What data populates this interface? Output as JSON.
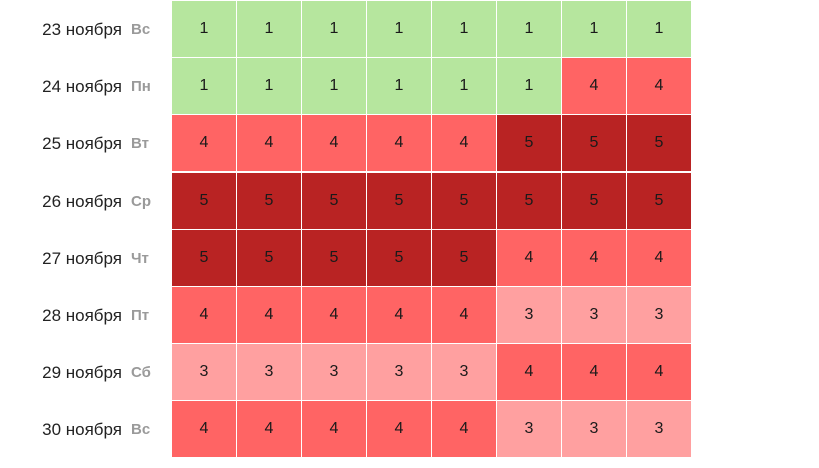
{
  "level_colors": {
    "1": "#b6e69e",
    "3": "#ffa0a0",
    "4": "#ff6464",
    "5": "#b92323"
  },
  "rows": [
    {
      "date": "23 ноября",
      "dow": "Вс",
      "values": [
        1,
        1,
        1,
        1,
        1,
        1,
        1,
        1
      ]
    },
    {
      "date": "24 ноября",
      "dow": "Пн",
      "values": [
        1,
        1,
        1,
        1,
        1,
        1,
        4,
        4
      ]
    },
    {
      "date": "25 ноября",
      "dow": "Вт",
      "values": [
        4,
        4,
        4,
        4,
        4,
        5,
        5,
        5
      ]
    },
    {
      "date": "26 ноября",
      "dow": "Ср",
      "values": [
        5,
        5,
        5,
        5,
        5,
        5,
        5,
        5
      ]
    },
    {
      "date": "27 ноября",
      "dow": "Чт",
      "values": [
        5,
        5,
        5,
        5,
        5,
        4,
        4,
        4
      ]
    },
    {
      "date": "28 ноября",
      "dow": "Пт",
      "values": [
        4,
        4,
        4,
        4,
        4,
        3,
        3,
        3
      ]
    },
    {
      "date": "29 ноября",
      "dow": "Сб",
      "values": [
        3,
        3,
        3,
        3,
        3,
        4,
        4,
        4
      ]
    },
    {
      "date": "30 ноября",
      "dow": "Вс",
      "values": [
        4,
        4,
        4,
        4,
        4,
        3,
        3,
        3
      ]
    }
  ]
}
